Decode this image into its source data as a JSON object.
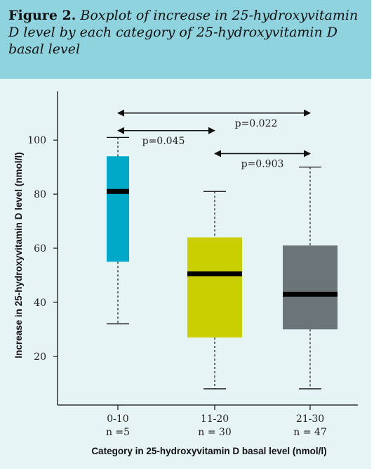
{
  "caption": {
    "label": "Figure 2.",
    "text": "Boxplot of increase in 25-hydroxyvitamin D level by each category of 25-hydroxyvitamin D basal level"
  },
  "colors": {
    "header_bg": "#8ed3de",
    "panel_bg": "#e6f4f6",
    "box_0_10": "#00a9c7",
    "box_11_20": "#c9cf00",
    "box_21_30": "#6b7478"
  },
  "chart_data": {
    "type": "boxplot",
    "title": "",
    "xlabel": "Category in 25-hydroxyvitamin D basal level (nmol/l)",
    "ylabel": "Increase in 25-hydroxyvitamin D level (nmol/l)",
    "ylim": [
      2,
      118
    ],
    "yticks": [
      20,
      40,
      60,
      80,
      100
    ],
    "grid": false,
    "categories": [
      {
        "name": "0-10",
        "n_label": "n =5",
        "min": 32,
        "q1": 55,
        "median": 81,
        "q3": 94,
        "max": 101,
        "color": "#00a9c7"
      },
      {
        "name": "11-20",
        "n_label": "n = 30",
        "min": 8,
        "q1": 27,
        "median": 50.5,
        "q3": 64,
        "max": 81,
        "color": "#c9cf00"
      },
      {
        "name": "21-30",
        "n_label": "n = 47",
        "min": 8,
        "q1": 30,
        "median": 43,
        "q3": 61,
        "max": 90,
        "color": "#6b7478"
      }
    ],
    "comparisons": [
      {
        "from": "0-10",
        "to": "21-30",
        "label": "p=0.022",
        "y": 110
      },
      {
        "from": "0-10",
        "to": "11-20",
        "label": "p=0.045",
        "y": 103.5
      },
      {
        "from": "11-20",
        "to": "21-30",
        "label": "p=0.903",
        "y": 95
      }
    ]
  }
}
